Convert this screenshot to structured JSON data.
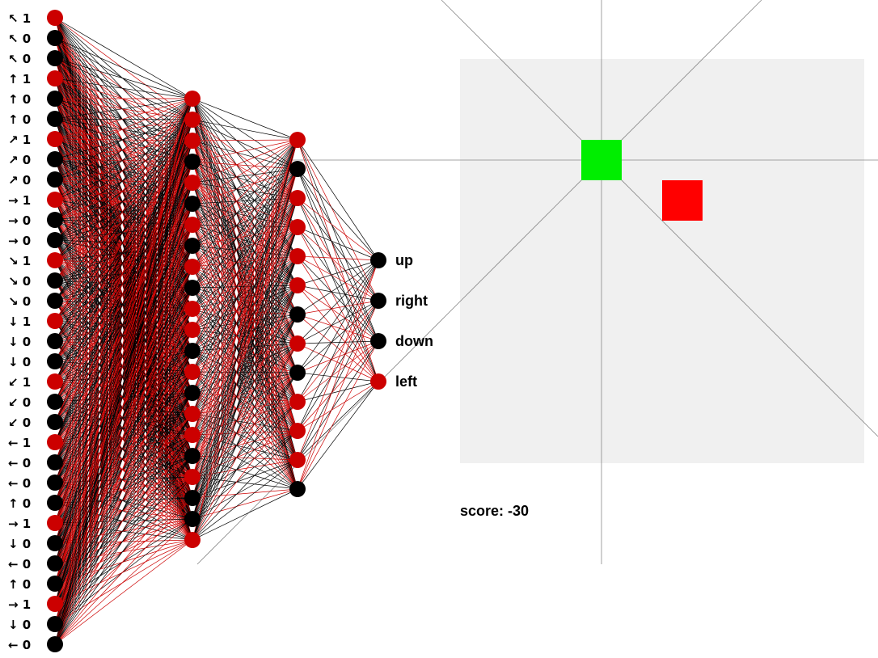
{
  "network": {
    "inputs": [
      {
        "arrow": "↖",
        "value": "1"
      },
      {
        "arrow": "↖",
        "value": "0"
      },
      {
        "arrow": "↖",
        "value": "0"
      },
      {
        "arrow": "↑",
        "value": "1"
      },
      {
        "arrow": "↑",
        "value": "0"
      },
      {
        "arrow": "↑",
        "value": "0"
      },
      {
        "arrow": "↗",
        "value": "1"
      },
      {
        "arrow": "↗",
        "value": "0"
      },
      {
        "arrow": "↗",
        "value": "0"
      },
      {
        "arrow": "→",
        "value": "1"
      },
      {
        "arrow": "→",
        "value": "0"
      },
      {
        "arrow": "→",
        "value": "0"
      },
      {
        "arrow": "↘",
        "value": "1"
      },
      {
        "arrow": "↘",
        "value": "0"
      },
      {
        "arrow": "↘",
        "value": "0"
      },
      {
        "arrow": "↓",
        "value": "1"
      },
      {
        "arrow": "↓",
        "value": "0"
      },
      {
        "arrow": "↓",
        "value": "0"
      },
      {
        "arrow": "↙",
        "value": "1"
      },
      {
        "arrow": "↙",
        "value": "0"
      },
      {
        "arrow": "↙",
        "value": "0"
      },
      {
        "arrow": "←",
        "value": "1"
      },
      {
        "arrow": "←",
        "value": "0"
      },
      {
        "arrow": "←",
        "value": "0"
      },
      {
        "arrow": "↑",
        "value": "0"
      },
      {
        "arrow": "→",
        "value": "1"
      },
      {
        "arrow": "↓",
        "value": "0"
      },
      {
        "arrow": "←",
        "value": "0"
      },
      {
        "arrow": "↑",
        "value": "0"
      },
      {
        "arrow": "→",
        "value": "1"
      },
      {
        "arrow": "↓",
        "value": "0"
      },
      {
        "arrow": "←",
        "value": "0"
      }
    ],
    "hidden1_active": [
      1,
      1,
      1,
      0,
      1,
      0,
      1,
      0,
      1,
      0,
      1,
      1,
      0,
      1,
      0,
      1,
      1,
      0,
      1,
      0,
      0,
      1
    ],
    "hidden2_active": [
      1,
      0,
      1,
      1,
      1,
      1,
      0,
      1,
      0,
      1,
      1,
      1,
      0
    ],
    "outputs": [
      {
        "label": "up",
        "active": 0
      },
      {
        "label": "right",
        "active": 0
      },
      {
        "label": "down",
        "active": 0
      },
      {
        "label": "left",
        "active": 1
      }
    ]
  },
  "game": {
    "score_label": "score: -30",
    "player_color": "#00ee00",
    "target_color": "#ff0000",
    "board_color": "#f0f0f0"
  },
  "colors": {
    "active_node": "#cc0000",
    "inactive_node": "#000000",
    "ray": "#888888"
  }
}
